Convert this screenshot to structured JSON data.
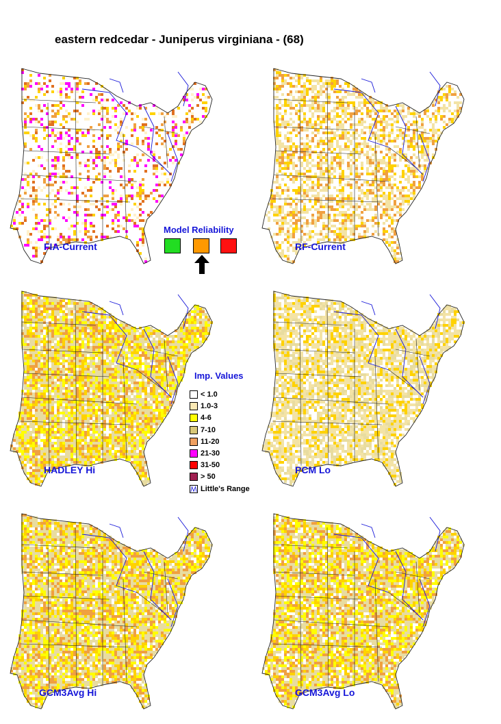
{
  "title": "eastern redcedar - Juniperus virginiana - (68)",
  "maps": [
    {
      "label": "FIA-Current",
      "palette": [
        "#fff2cc",
        "#ffd200",
        "#f0a040",
        "#ff00ff",
        "#e07020"
      ],
      "density": 0.28
    },
    {
      "label": "RF-Current",
      "palette": [
        "#f3e3a6",
        "#f3e3a6",
        "#ffd200",
        "#f0a040"
      ],
      "density": 0.55
    },
    {
      "label": "HADLEY Hi",
      "palette": [
        "#e8dca0",
        "#e8dca0",
        "#ffff00",
        "#f0a040",
        "#ffd200"
      ],
      "density": 0.9
    },
    {
      "label": "PCM Lo",
      "palette": [
        "#f3e3a6",
        "#f3e3a6",
        "#ffd200",
        "#e8dca0"
      ],
      "density": 0.75
    },
    {
      "label": "GCM3Avg Hi",
      "palette": [
        "#e8dca0",
        "#ffff00",
        "#e8dca0",
        "#f0a040",
        "#ffd200"
      ],
      "density": 0.9
    },
    {
      "label": "GCM3Avg Lo",
      "palette": [
        "#e8dca0",
        "#e8dca0",
        "#ffff00",
        "#f0a040",
        "#ffd200"
      ],
      "density": 0.88
    }
  ],
  "reliability": {
    "title": "Model Reliability",
    "colors": [
      "#22dd22",
      "#ff9900",
      "#ff1111"
    ],
    "selected_index": 1
  },
  "legend": {
    "title": "Imp. Values",
    "items": [
      {
        "label": "< 1.0",
        "color": "#ffffff"
      },
      {
        "label": "1.0-3",
        "color": "#fbe9b4"
      },
      {
        "label": "4-6",
        "color": "#ffff00"
      },
      {
        "label": "7-10",
        "color": "#d8c878"
      },
      {
        "label": "11-20",
        "color": "#f0a060"
      },
      {
        "label": "21-30",
        "color": "#ff00ff"
      },
      {
        "label": "31-50",
        "color": "#ff0000"
      },
      {
        "label": "> 50",
        "color": "#a02050"
      }
    ],
    "range_label": "Little's Range"
  }
}
